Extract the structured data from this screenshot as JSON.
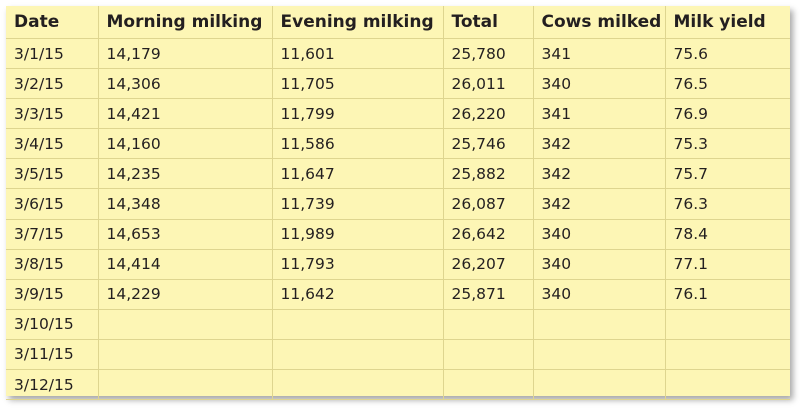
{
  "table": {
    "headers": [
      "Date",
      "Morning milking",
      "Evening milking",
      "Total",
      "Cows milked",
      "Milk yield"
    ],
    "rows": [
      [
        "3/1/15",
        "14,179",
        "11,601",
        "25,780",
        "341",
        "75.6"
      ],
      [
        "3/2/15",
        "14,306",
        "11,705",
        "26,011",
        "340",
        "76.5"
      ],
      [
        "3/3/15",
        "14,421",
        "11,799",
        "26,220",
        "341",
        "76.9"
      ],
      [
        "3/4/15",
        "14,160",
        "11,586",
        "25,746",
        "342",
        "75.3"
      ],
      [
        "3/5/15",
        "14,235",
        "11,647",
        "25,882",
        "342",
        "75.7"
      ],
      [
        "3/6/15",
        "14,348",
        "11,739",
        "26,087",
        "342",
        "76.3"
      ],
      [
        "3/7/15",
        "14,653",
        "11,989",
        "26,642",
        "340",
        "78.4"
      ],
      [
        "3/8/15",
        "14,414",
        "11,793",
        "26,207",
        "340",
        "77.1"
      ],
      [
        "3/9/15",
        "14,229",
        "11,642",
        "25,871",
        "340",
        "76.1"
      ],
      [
        "3/10/15",
        "",
        "",
        "",
        "",
        ""
      ],
      [
        "3/11/15",
        "",
        "",
        "",
        "",
        ""
      ],
      [
        "3/12/15",
        "",
        "",
        "",
        "",
        ""
      ]
    ]
  },
  "colors": {
    "sheet_background": "#fdf6b5",
    "grid_line": "#ded58f",
    "text": "#231f20"
  }
}
